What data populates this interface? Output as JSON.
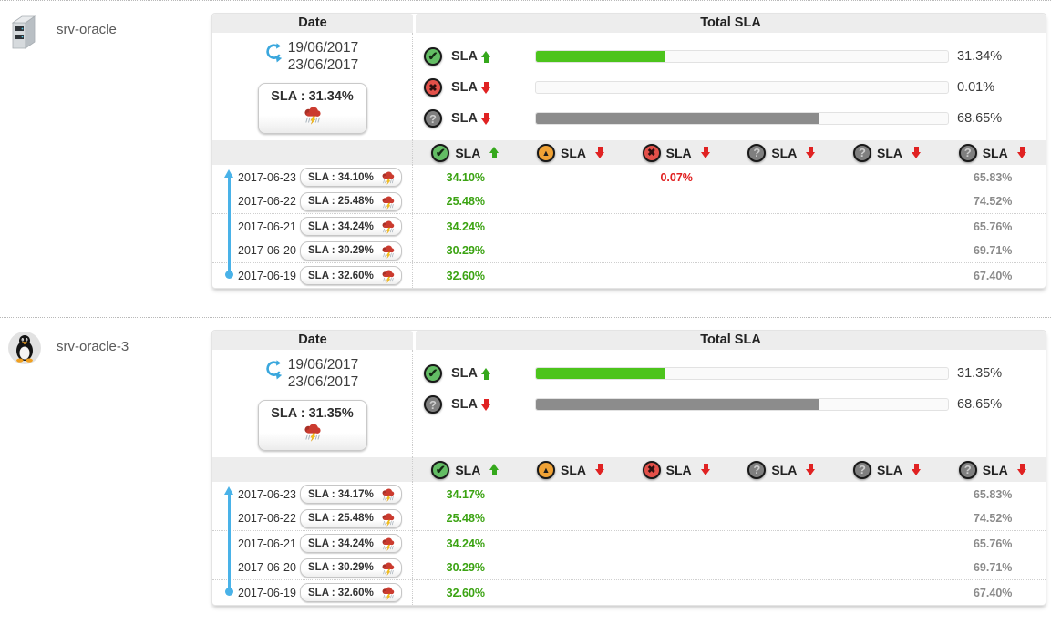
{
  "status_colors": {
    "ok": "#4cc41c",
    "warning": "#f0a235",
    "critical": "#e35049",
    "unknown": "#8c8c8c"
  },
  "accent_colors": {
    "timeline_blue": "#49b2e8",
    "green_text": "#3ba312",
    "red_text": "#e01f1f",
    "gray_text": "#8b8b8b"
  },
  "icons": {
    "server": "server-tower-icon",
    "linux": "linux-penguin-icon",
    "ok": "check-circle-icon",
    "warning": "warning-triangle-circle-icon",
    "critical": "cross-circle-icon",
    "unknown": "question-circle-icon",
    "storm": "storm-cloud-icon",
    "range": "date-range-refresh-icon",
    "timeline": "timeline-up-arrow"
  },
  "servers": [
    {
      "name": "srv-oracle",
      "icon": "server",
      "labels": {
        "date": "Date",
        "total": "Total SLA"
      },
      "date_from": "19/06/2017",
      "date_to": "23/06/2017",
      "sla_summary": "SLA : 31.34%",
      "bars": [
        {
          "status": "ok",
          "trend": "up",
          "label": "SLA",
          "value": "31.34%",
          "pct": 31.34
        },
        {
          "status": "critical",
          "trend": "down",
          "label": "SLA",
          "value": "0.01%",
          "pct": 0.01
        },
        {
          "status": "unknown",
          "trend": "down",
          "label": "SLA",
          "value": "68.65%",
          "pct": 68.65
        }
      ],
      "columns": [
        {
          "status": "ok",
          "trend": "up",
          "label": "SLA"
        },
        {
          "status": "warning",
          "trend": "down",
          "label": "SLA"
        },
        {
          "status": "critical",
          "trend": "down",
          "label": "SLA"
        },
        {
          "status": "unknown",
          "trend": "down",
          "label": "SLA"
        },
        {
          "status": "unknown",
          "trend": "down",
          "label": "SLA"
        },
        {
          "status": "unknown",
          "trend": "down",
          "label": "SLA"
        }
      ],
      "rows": [
        {
          "date": "2017-06-23",
          "sla": "SLA : 34.10%",
          "values": [
            "34.10%",
            "",
            "0.07%",
            "",
            "",
            "65.83%"
          ]
        },
        {
          "date": "2017-06-22",
          "sla": "SLA : 25.48%",
          "values": [
            "25.48%",
            "",
            "",
            "",
            "",
            "74.52%"
          ]
        },
        {
          "date": "2017-06-21",
          "sla": "SLA : 34.24%",
          "values": [
            "34.24%",
            "",
            "",
            "",
            "",
            "65.76%"
          ]
        },
        {
          "date": "2017-06-20",
          "sla": "SLA : 30.29%",
          "values": [
            "30.29%",
            "",
            "",
            "",
            "",
            "69.71%"
          ]
        },
        {
          "date": "2017-06-19",
          "sla": "SLA : 32.60%",
          "values": [
            "32.60%",
            "",
            "",
            "",
            "",
            "67.40%"
          ]
        }
      ]
    },
    {
      "name": "srv-oracle-3",
      "icon": "linux",
      "labels": {
        "date": "Date",
        "total": "Total SLA"
      },
      "date_from": "19/06/2017",
      "date_to": "23/06/2017",
      "sla_summary": "SLA : 31.35%",
      "bars": [
        {
          "status": "ok",
          "trend": "up",
          "label": "SLA",
          "value": "31.35%",
          "pct": 31.35
        },
        {
          "status": "unknown",
          "trend": "down",
          "label": "SLA",
          "value": "68.65%",
          "pct": 68.65
        }
      ],
      "columns": [
        {
          "status": "ok",
          "trend": "up",
          "label": "SLA"
        },
        {
          "status": "warning",
          "trend": "down",
          "label": "SLA"
        },
        {
          "status": "critical",
          "trend": "down",
          "label": "SLA"
        },
        {
          "status": "unknown",
          "trend": "down",
          "label": "SLA"
        },
        {
          "status": "unknown",
          "trend": "down",
          "label": "SLA"
        },
        {
          "status": "unknown",
          "trend": "down",
          "label": "SLA"
        }
      ],
      "rows": [
        {
          "date": "2017-06-23",
          "sla": "SLA : 34.17%",
          "values": [
            "34.17%",
            "",
            "",
            "",
            "",
            "65.83%"
          ]
        },
        {
          "date": "2017-06-22",
          "sla": "SLA : 25.48%",
          "values": [
            "25.48%",
            "",
            "",
            "",
            "",
            "74.52%"
          ]
        },
        {
          "date": "2017-06-21",
          "sla": "SLA : 34.24%",
          "values": [
            "34.24%",
            "",
            "",
            "",
            "",
            "65.76%"
          ]
        },
        {
          "date": "2017-06-20",
          "sla": "SLA : 30.29%",
          "values": [
            "30.29%",
            "",
            "",
            "",
            "",
            "69.71%"
          ]
        },
        {
          "date": "2017-06-19",
          "sla": "SLA : 32.60%",
          "values": [
            "32.60%",
            "",
            "",
            "",
            "",
            "67.40%"
          ]
        }
      ]
    }
  ]
}
